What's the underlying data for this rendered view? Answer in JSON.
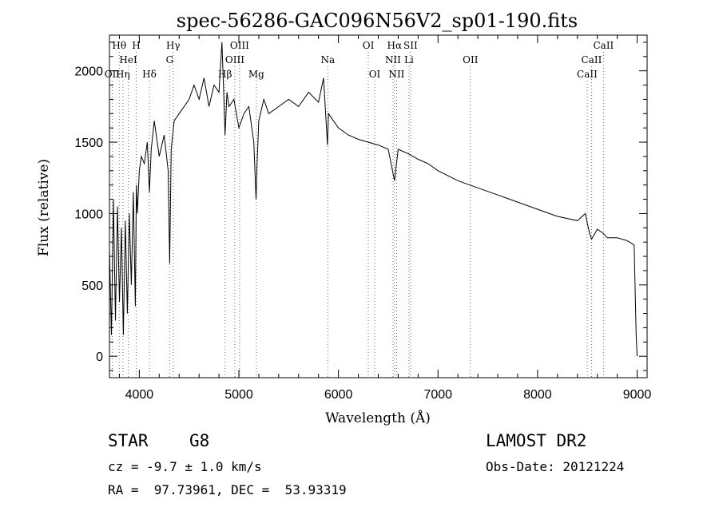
{
  "chart_data": {
    "type": "line",
    "title": "spec-56286-GAC096N56V2_sp01-190.fits",
    "xlabel": "Wavelength (Å)",
    "ylabel": "Flux (relative)",
    "xlim": [
      3700,
      9100
    ],
    "ylim": [
      -150,
      2250
    ],
    "x_ticks": [
      4000,
      5000,
      6000,
      7000,
      8000,
      9000
    ],
    "y_ticks": [
      0,
      500,
      1000,
      1500,
      2000
    ],
    "spectrum": {
      "x": [
        3700,
        3720,
        3740,
        3760,
        3780,
        3800,
        3820,
        3840,
        3860,
        3880,
        3900,
        3920,
        3940,
        3960,
        3970,
        3980,
        4000,
        4020,
        4050,
        4080,
        4101,
        4120,
        4150,
        4200,
        4250,
        4290,
        4305,
        4320,
        4350,
        4400,
        4450,
        4500,
        4550,
        4600,
        4650,
        4700,
        4750,
        4800,
        4830,
        4850,
        4861,
        4880,
        4900,
        4950,
        5000,
        5050,
        5100,
        5150,
        5172,
        5183,
        5200,
        5250,
        5300,
        5400,
        5500,
        5600,
        5700,
        5800,
        5850,
        5890,
        5900,
        5950,
        6000,
        6100,
        6200,
        6300,
        6400,
        6500,
        6563,
        6600,
        6700,
        6800,
        6900,
        7000,
        7200,
        7400,
        7600,
        7800,
        8000,
        8200,
        8400,
        8480,
        8500,
        8520,
        8542,
        8600,
        8662,
        8700,
        8800,
        8900,
        8970,
        8990,
        9000
      ],
      "y": [
        750,
        150,
        1100,
        250,
        1050,
        380,
        900,
        150,
        950,
        300,
        1000,
        500,
        1150,
        350,
        1200,
        1000,
        1300,
        1400,
        1350,
        1500,
        1150,
        1450,
        1650,
        1400,
        1550,
        1300,
        650,
        1450,
        1650,
        1700,
        1750,
        1800,
        1900,
        1800,
        1950,
        1750,
        1900,
        1850,
        2200,
        1800,
        1550,
        1850,
        1750,
        1800,
        1600,
        1700,
        1750,
        1500,
        1100,
        1350,
        1650,
        1800,
        1700,
        1750,
        1800,
        1750,
        1850,
        1780,
        1950,
        1480,
        1700,
        1650,
        1600,
        1550,
        1520,
        1500,
        1480,
        1450,
        1230,
        1450,
        1420,
        1380,
        1350,
        1300,
        1230,
        1180,
        1130,
        1080,
        1030,
        980,
        950,
        1000,
        930,
        870,
        820,
        890,
        860,
        830,
        830,
        810,
        780,
        150,
        0
      ]
    },
    "lines": [
      {
        "label": "Hθ",
        "x": 3798,
        "row": 0
      },
      {
        "label": "OII",
        "x": 3727,
        "row": 2
      },
      {
        "label": "Hη",
        "x": 3835,
        "row": 2
      },
      {
        "label": "HeI",
        "x": 3889,
        "row": 1
      },
      {
        "label": "H",
        "x": 3969,
        "row": 0
      },
      {
        "label": "Hδ",
        "x": 4101,
        "row": 2
      },
      {
        "label": "Hγ",
        "x": 4340,
        "row": 0
      },
      {
        "label": "G",
        "x": 4305,
        "row": 1
      },
      {
        "label": "Hβ",
        "x": 4861,
        "row": 2
      },
      {
        "label": "OIII",
        "x": 5007,
        "row": 0
      },
      {
        "label": "OIII",
        "x": 4959,
        "row": 1
      },
      {
        "label": "Mg",
        "x": 5175,
        "row": 2
      },
      {
        "label": "Na",
        "x": 5893,
        "row": 1
      },
      {
        "label": "OI",
        "x": 6300,
        "row": 0
      },
      {
        "label": "OI",
        "x": 6364,
        "row": 2
      },
      {
        "label": "Hα",
        "x": 6563,
        "row": 0
      },
      {
        "label": "SII",
        "x": 6724,
        "row": 0
      },
      {
        "label": "NII",
        "x": 6548,
        "row": 1
      },
      {
        "label": "Li",
        "x": 6708,
        "row": 1
      },
      {
        "label": "NII",
        "x": 6584,
        "row": 2
      },
      {
        "label": "OII",
        "x": 7325,
        "row": 1
      },
      {
        "label": "CaII",
        "x": 8662,
        "row": 0
      },
      {
        "label": "CaII",
        "x": 8542,
        "row": 1
      },
      {
        "label": "CaII",
        "x": 8498,
        "row": 2
      }
    ]
  },
  "info": {
    "object_class": "STAR",
    "subclass": "G8",
    "survey": "LAMOST DR2",
    "redshift": "cz = -9.7 ± 1.0 km/s",
    "obs_date": "Obs-Date: 20121224",
    "coords": "RA =  97.73961, DEC =  53.93319"
  }
}
